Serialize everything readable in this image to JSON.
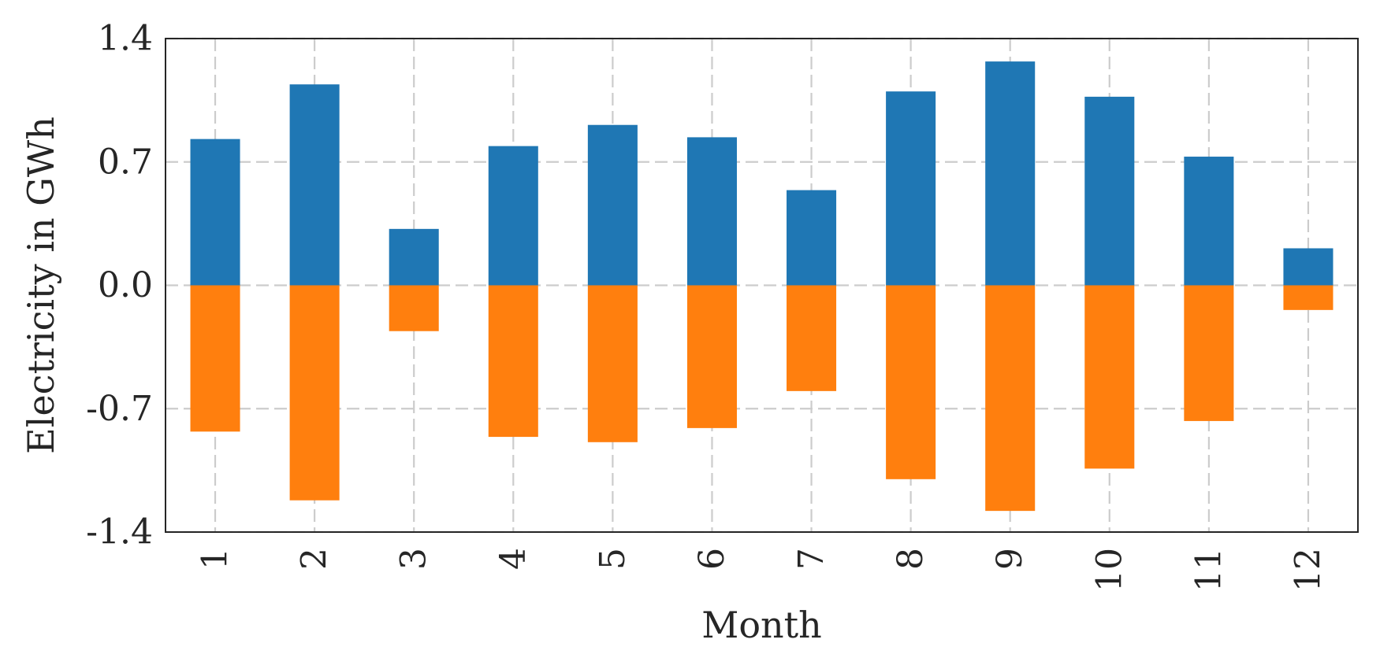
{
  "chart_data": {
    "type": "bar",
    "stacked": true,
    "title": "",
    "xlabel": "Month",
    "ylabel": "Electricity in GWh",
    "categories": [
      "1",
      "2",
      "3",
      "4",
      "5",
      "6",
      "7",
      "8",
      "9",
      "10",
      "11",
      "12"
    ],
    "series": [
      {
        "values": [
          0.83,
          1.14,
          0.32,
          0.79,
          0.91,
          0.84,
          0.54,
          1.1,
          1.27,
          1.07,
          0.73,
          0.21
        ]
      },
      {
        "values": [
          -0.83,
          -1.22,
          -0.26,
          -0.86,
          -0.89,
          -0.81,
          -0.6,
          -1.1,
          -1.28,
          -1.04,
          -0.77,
          -0.14
        ]
      }
    ],
    "colors": [
      "#1f77b4",
      "#ff7f0e"
    ],
    "ylim": [
      -1.4,
      1.4
    ],
    "yticks": [
      "1.4",
      "0.7",
      "0.0",
      "-0.7",
      "-1.4"
    ],
    "ytick_values": [
      1.4,
      0.7,
      0.0,
      -0.7,
      -1.4
    ],
    "grid": true,
    "legend": "none"
  }
}
